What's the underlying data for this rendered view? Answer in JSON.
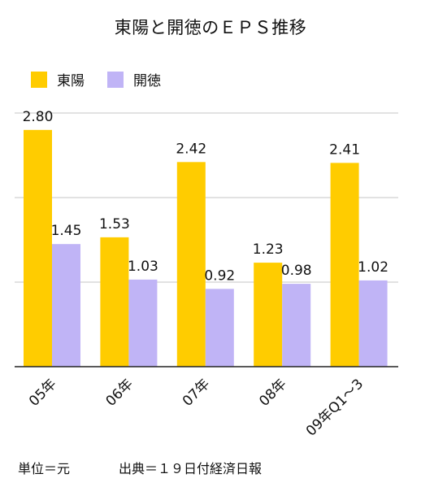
{
  "title": "東陽と開徳のＥＰＳ推移",
  "footnote_unit": "単位＝元",
  "footnote_source": "出典＝１９日付経済日報",
  "colors": {
    "series_a": "#FFCC00",
    "series_b": "#C0B4F6",
    "grid": "#C4C4C4",
    "axis": "#222222"
  },
  "chart_data": {
    "type": "bar",
    "categories": [
      "05年",
      "06年",
      "07年",
      "08年",
      "09年Q1～3"
    ],
    "series": [
      {
        "name": "東陽",
        "values": [
          2.8,
          1.53,
          2.42,
          1.23,
          2.41
        ],
        "labels": [
          "2.80",
          "1.53",
          "2.42",
          "1.23",
          "2.41"
        ]
      },
      {
        "name": "開徳",
        "values": [
          1.45,
          1.03,
          0.92,
          0.98,
          1.02
        ],
        "labels": [
          "1.45",
          "1.03",
          "0.92",
          "0.98",
          "1.02"
        ]
      }
    ],
    "ylim": [
      0,
      3
    ],
    "yticks": [
      0,
      1,
      2,
      3
    ],
    "grid": true,
    "legend": "top-left",
    "xlabel": "",
    "ylabel": ""
  }
}
